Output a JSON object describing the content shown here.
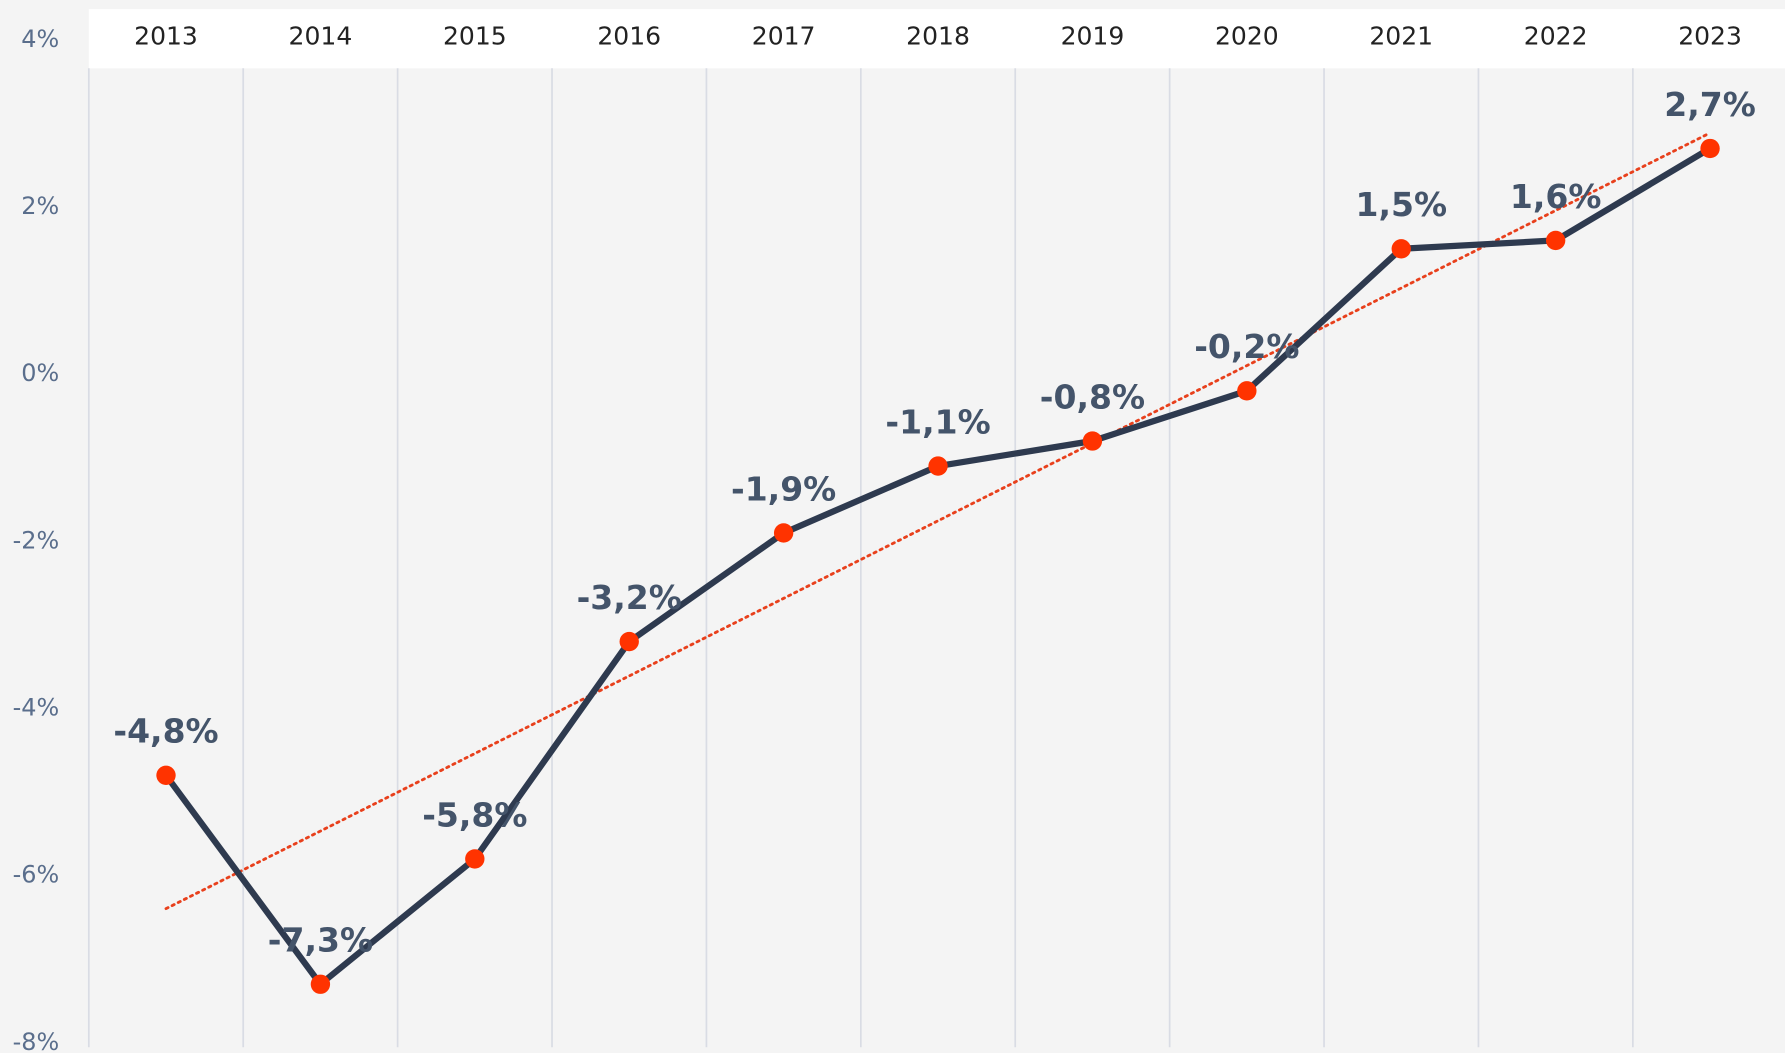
{
  "chart_data": {
    "type": "line",
    "categories": [
      "2013",
      "2014",
      "2015",
      "2016",
      "2017",
      "2018",
      "2019",
      "2020",
      "2021",
      "2022",
      "2023"
    ],
    "series": [
      {
        "color": "#2e3a4f",
        "marker_color": "#ff3300",
        "values": [
          -4.8,
          -7.3,
          -5.8,
          -3.2,
          -1.9,
          -1.1,
          -0.8,
          -0.2,
          1.5,
          1.6,
          2.7
        ],
        "value_labels": [
          "-4,8%",
          "-7,3%",
          "-5,8%",
          "-3,2%",
          "-1,9%",
          "-1,1%",
          "-0,8%",
          "-0,2%",
          "1,5%",
          "1,6%",
          "2,7%"
        ]
      }
    ],
    "ylim": [
      -8,
      4
    ],
    "yticks": [
      {
        "value": -8,
        "label": "-8%"
      },
      {
        "value": -6,
        "label": "-6%"
      },
      {
        "value": -4,
        "label": "-4%"
      },
      {
        "value": -2,
        "label": "-2%"
      },
      {
        "value": 0,
        "label": "0%"
      },
      {
        "value": 2,
        "label": "2%"
      },
      {
        "value": 4,
        "label": "4%"
      }
    ],
    "trendline": {
      "type": "linear",
      "color": "#e8401c"
    },
    "grid": true
  }
}
